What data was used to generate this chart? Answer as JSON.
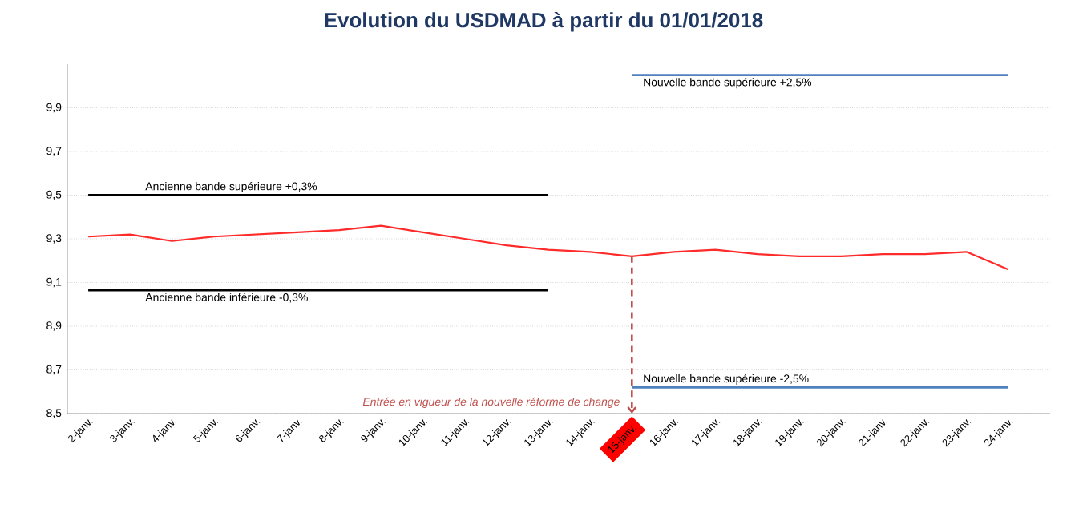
{
  "chart_data": {
    "type": "line",
    "title": "Evolution du USDMAD à partir du 01/01/2018",
    "categories": [
      "2-janv.",
      "3-janv.",
      "4-janv.",
      "5-janv.",
      "6-janv.",
      "7-janv.",
      "8-janv.",
      "9-janv.",
      "10-janv.",
      "11-janv.",
      "12-janv.",
      "13-janv.",
      "14-janv.",
      "15-janv.",
      "16-janv.",
      "17-janv.",
      "18-janv.",
      "19-janv.",
      "20-janv.",
      "21-janv.",
      "22-janv.",
      "23-janv.",
      "24-janv."
    ],
    "series": [
      {
        "color": "#ff2a2a",
        "values": [
          9.31,
          9.32,
          9.29,
          9.31,
          9.32,
          9.33,
          9.34,
          9.36,
          9.33,
          9.3,
          9.27,
          9.25,
          9.24,
          9.22,
          9.24,
          9.25,
          9.23,
          9.22,
          9.22,
          9.23,
          9.23,
          9.24,
          9.16
        ]
      },
      {
        "name": "Ancienne bande supérieure +0,3%",
        "color": "#000000",
        "values": [
          9.5,
          9.5,
          9.5,
          9.5,
          9.5,
          9.5,
          9.5,
          9.5,
          9.5,
          9.5,
          9.5,
          9.5,
          null,
          null,
          null,
          null,
          null,
          null,
          null,
          null,
          null,
          null,
          null
        ]
      },
      {
        "name": "Ancienne bande inférieure -0,3%",
        "color": "#000000",
        "values": [
          9.065,
          9.065,
          9.065,
          9.065,
          9.065,
          9.065,
          9.065,
          9.065,
          9.065,
          9.065,
          9.065,
          9.065,
          null,
          null,
          null,
          null,
          null,
          null,
          null,
          null,
          null,
          null,
          null
        ]
      },
      {
        "name": "Nouvelle bande supérieure +2,5%",
        "color": "#4f81bd",
        "values": [
          null,
          null,
          null,
          null,
          null,
          null,
          null,
          null,
          null,
          null,
          null,
          null,
          null,
          10.05,
          10.05,
          10.05,
          10.05,
          10.05,
          10.05,
          10.05,
          10.05,
          10.05,
          10.05
        ]
      },
      {
        "name": "Nouvelle bande supérieure -2,5%",
        "color": "#4f81bd",
        "values": [
          null,
          null,
          null,
          null,
          null,
          null,
          null,
          null,
          null,
          null,
          null,
          null,
          null,
          8.62,
          8.62,
          8.62,
          8.62,
          8.62,
          8.62,
          8.62,
          8.62,
          8.62,
          8.62
        ]
      }
    ],
    "ylim": [
      8.5,
      10.1
    ],
    "yticks": [
      {
        "value": 8.5,
        "label": "8,5"
      },
      {
        "value": 8.7,
        "label": "8,7"
      },
      {
        "value": 8.9,
        "label": "8,9"
      },
      {
        "value": 9.1,
        "label": "9,1"
      },
      {
        "value": 9.3,
        "label": "9,3"
      },
      {
        "value": 9.5,
        "label": "9,5"
      },
      {
        "value": 9.7,
        "label": "9,7"
      },
      {
        "value": 9.9,
        "label": "9,9"
      }
    ],
    "grid": "y",
    "legend": false,
    "ref_lines": [
      {
        "axis": "x",
        "value": "15-janv.",
        "label": "Entrée en vigueur de la nouvelle réforme de change",
        "color": "#c0504d",
        "line_style": "dashed"
      }
    ]
  }
}
